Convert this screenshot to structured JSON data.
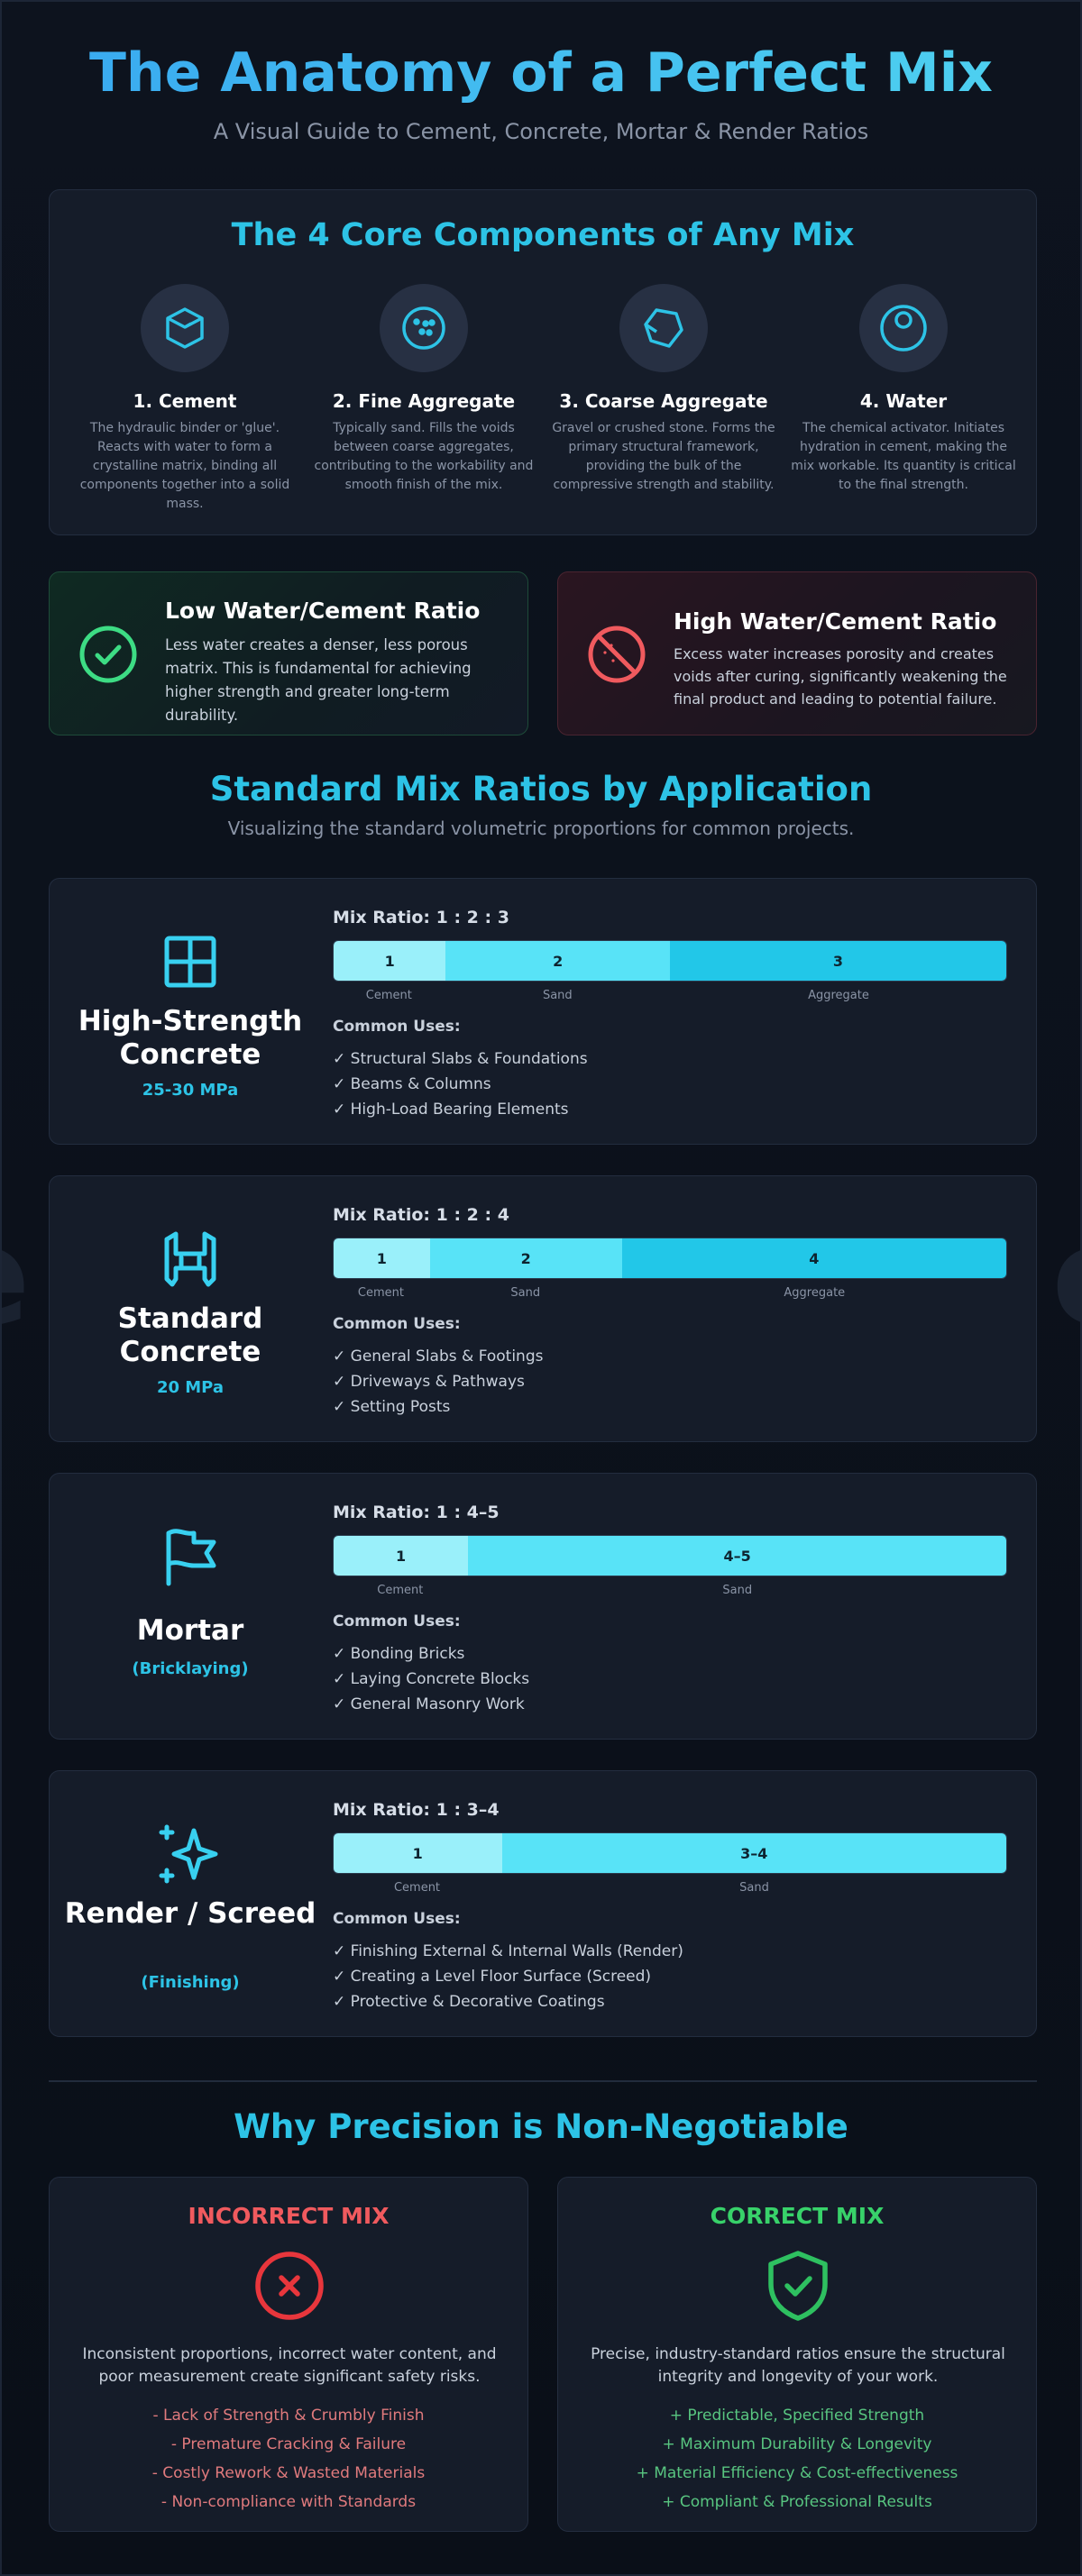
{
  "header": {
    "title": "The Anatomy of a Perfect Mix",
    "subtitle": "A Visual Guide to Cement, Concrete, Mortar & Render Ratios"
  },
  "components": {
    "title": "The 4 Core Components of Any Mix",
    "items": [
      {
        "icon": "cube-icon",
        "name": "1. Cement",
        "desc": "The hydraulic binder or 'glue'. Reacts with water to form a crystalline matrix, binding all components together into a solid mass."
      },
      {
        "icon": "sand-grains-icon",
        "name": "2. Fine Aggregate",
        "desc": "Typically sand. Fills the voids between coarse aggregates, contributing to the workability and smooth finish of the mix."
      },
      {
        "icon": "stone-icon",
        "name": "3. Coarse Aggregate",
        "desc": "Gravel or crushed stone. Forms the primary structural framework, providing the bulk of the compressive strength and stability."
      },
      {
        "icon": "water-drop-icon",
        "name": "4. Water",
        "desc": "The chemical activator. Initiates hydration in cement, making the mix workable. Its quantity is critical to the final strength."
      }
    ]
  },
  "water_cement": {
    "low": {
      "title": "Low Water/Cement Ratio",
      "desc": "Less water creates a denser, less porous matrix. This is fundamental for achieving higher strength and greater long-term durability.",
      "icon": "check-circle-icon",
      "color": "#3ddc84"
    },
    "high": {
      "title": "High Water/Cement Ratio",
      "desc": "Excess water increases porosity and creates voids after curing, significantly weakening the final product and leading to potential failure.",
      "icon": "no-entry-icon",
      "color": "#f05a5e"
    }
  },
  "ratios_section": {
    "title": "Standard Mix Ratios by Application",
    "subtitle": "Visualizing the standard volumetric proportions for common projects."
  },
  "mixes": [
    {
      "name": "High-Strength Concrete",
      "strength": "25-30 MPa",
      "icon": "grid-block-icon",
      "ratio_label": "Mix Ratio: 1 : 2 : 3",
      "segments": [
        {
          "value": "1",
          "label": "Cement",
          "fraction": 0.1667
        },
        {
          "value": "2",
          "label": "Sand",
          "fraction": 0.3333
        },
        {
          "value": "3",
          "label": "Aggregate",
          "fraction": 0.5
        }
      ],
      "uses_heading": "Common Uses:",
      "uses": [
        "✓ Structural Slabs & Foundations",
        "✓ Beams & Columns",
        "✓ High-Load Bearing Elements"
      ]
    },
    {
      "name": "Standard Concrete",
      "strength": "20 MPa",
      "icon": "building-icon",
      "ratio_label": "Mix Ratio: 1 : 2 : 4",
      "segments": [
        {
          "value": "1",
          "label": "Cement",
          "fraction": 0.1429
        },
        {
          "value": "2",
          "label": "Sand",
          "fraction": 0.2857
        },
        {
          "value": "4",
          "label": "Aggregate",
          "fraction": 0.5714
        }
      ],
      "uses_heading": "Common Uses:",
      "uses": [
        "✓ General Slabs & Footings",
        "✓ Driveways & Pathways",
        "✓ Setting Posts"
      ]
    },
    {
      "name": "Mortar",
      "strength": "(Bricklaying)",
      "icon": "flag-icon",
      "ratio_label": "Mix Ratio: 1 : 4–5",
      "segments": [
        {
          "value": "1",
          "label": "Cement",
          "fraction": 0.2
        },
        {
          "value": "4–5",
          "label": "Sand",
          "fraction": 0.8
        }
      ],
      "uses_heading": "Common Uses:",
      "uses": [
        "✓ Bonding Bricks",
        "✓ Laying Concrete Blocks",
        "✓ General Masonry Work"
      ]
    },
    {
      "name": "Render / Screed",
      "strength": "(Finishing)",
      "icon": "sparkle-icon",
      "ratio_label": "Mix Ratio: 1 : 3–4",
      "segments": [
        {
          "value": "1",
          "label": "Cement",
          "fraction": 0.25
        },
        {
          "value": "3–4",
          "label": "Sand",
          "fraction": 0.75
        }
      ],
      "uses_heading": "Common Uses:",
      "uses": [
        "✓ Finishing External & Internal Walls (Render)",
        "✓ Creating a Level Floor Surface (Screed)",
        "✓ Protective & Decorative Coatings"
      ]
    }
  ],
  "precision": {
    "title": "Why Precision is Non-Negotiable",
    "incorrect": {
      "title": "INCORRECT MIX",
      "icon": "x-circle-icon",
      "desc": "Inconsistent proportions, incorrect water content, and poor measurement create significant safety risks.",
      "items": [
        "- Lack of Strength & Crumbly Finish",
        "- Premature Cracking & Failure",
        "- Costly Rework & Wasted Materials",
        "- Non-compliance with Standards"
      ]
    },
    "correct": {
      "title": "CORRECT MIX",
      "icon": "shield-check-icon",
      "desc": "Precise, industry-standard ratios ensure the structural integrity and longevity of your work.",
      "items": [
        "+ Predictable, Specified Strength",
        "+ Maximum Durability & Longevity",
        "+ Material Efficiency & Cost-effectiveness",
        "+ Compliant & Professional Results"
      ]
    }
  },
  "colors": {
    "accent": "#2dc3e6",
    "cement": "#9af0fa",
    "sand": "#58e3f7",
    "aggregate": "#22c7e8",
    "danger": "#f05a5e",
    "success": "#38d26a"
  }
}
